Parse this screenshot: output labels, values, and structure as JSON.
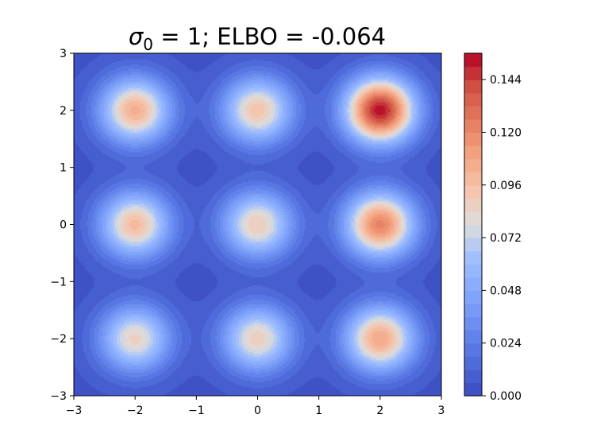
{
  "chart_data": {
    "type": "heatmap",
    "subtype": "filled-contour",
    "title": {
      "symbol": "σ",
      "subscript": "0",
      "rest": " = 1; ELBO = -0.064"
    },
    "xlabel": "",
    "ylabel": "",
    "xlim": [
      -3,
      3
    ],
    "ylim": [
      -3,
      3
    ],
    "x_ticks": [
      -3,
      -2,
      -1,
      0,
      1,
      2,
      3
    ],
    "y_ticks": [
      -3,
      -2,
      -1,
      0,
      1,
      2,
      3
    ],
    "x_tick_labels": [
      "−3",
      "−2",
      "−1",
      "0",
      "1",
      "2",
      "3"
    ],
    "y_tick_labels": [
      "−3",
      "−2",
      "−1",
      "0",
      "1",
      "2",
      "3"
    ],
    "grid": false,
    "colormap": "coolwarm",
    "mixture_components": {
      "centers_x": [
        -2,
        0,
        2
      ],
      "centers_y": [
        -2,
        0,
        2
      ],
      "sigma": 0.4,
      "peak_densities": [
        {
          "x": -2,
          "y": 2,
          "peak": 0.1
        },
        {
          "x": 0,
          "y": 2,
          "peak": 0.09
        },
        {
          "x": 2,
          "y": 2,
          "peak": 0.15
        },
        {
          "x": -2,
          "y": 0,
          "peak": 0.094
        },
        {
          "x": 0,
          "y": 0,
          "peak": 0.086
        },
        {
          "x": 2,
          "y": 0,
          "peak": 0.118
        },
        {
          "x": -2,
          "y": -2,
          "peak": 0.082
        },
        {
          "x": 0,
          "y": -2,
          "peak": 0.084
        },
        {
          "x": 2,
          "y": -2,
          "peak": 0.104
        }
      ]
    },
    "colorbar": {
      "range": [
        0,
        0.156
      ],
      "levels": 26,
      "ticks": [
        0.0,
        0.024,
        0.048,
        0.072,
        0.096,
        0.12,
        0.144
      ],
      "tick_labels": [
        "0.000",
        "0.024",
        "0.048",
        "0.072",
        "0.096",
        "0.120",
        "0.144"
      ]
    }
  }
}
